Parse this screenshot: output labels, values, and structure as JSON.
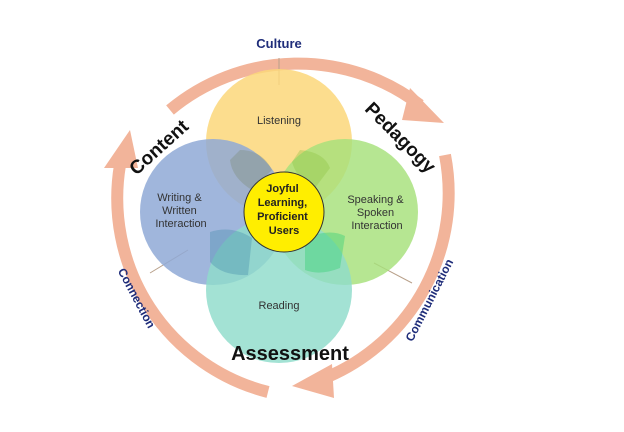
{
  "diagram": {
    "center": [
      "Joyful",
      "Learning,",
      "Proficient",
      "Users"
    ],
    "circles": {
      "top": "Listening",
      "left": [
        "Writing &",
        "Written",
        "Interaction"
      ],
      "right": [
        "Speaking &",
        "Spoken",
        "Interaction"
      ],
      "bottom": "Reading"
    },
    "pillars": {
      "content": "Content",
      "pedagogy": "Pedagogy",
      "assessment": "Assessment"
    },
    "ring": {
      "top": "Culture",
      "left": "Connection",
      "right": "Communication"
    }
  },
  "colors": {
    "arrow": "#f2b49a",
    "arrow_stroke": "#e7a58b",
    "listening": "#fcd77a",
    "writing": "#8fa9d6",
    "speaking": "#a6e07a",
    "reading": "#8fdcca",
    "center": "#ffee00",
    "ring_text": "#1f2d7a"
  }
}
